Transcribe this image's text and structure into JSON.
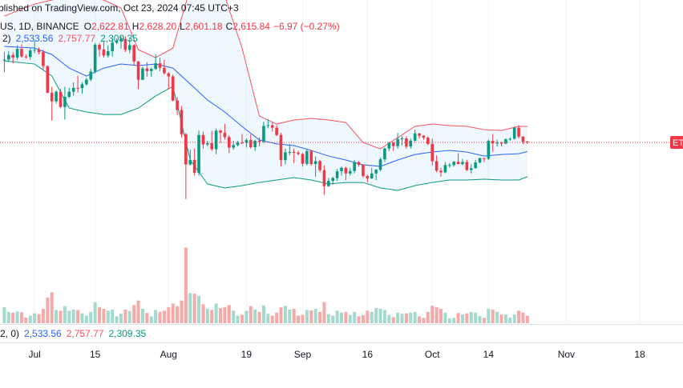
{
  "header": {
    "publisher": "blished on TradingView.com, Oct 23, 2024 07:45 UTC+3",
    "symbol": "US, 1D, BINANCE",
    "ohlc": [
      {
        "key": "O",
        "value": "2,622.81"
      },
      {
        "key": "H",
        "value": "2,628.20"
      },
      {
        "key": "L",
        "value": "2,601.18"
      },
      {
        "key": "C",
        "value": "2,615.84"
      }
    ],
    "change": "−6.97 (−0.27%)",
    "bb_legend": {
      "params": "2)",
      "values": [
        "2,533.56",
        "2,757.77",
        "2,309.35"
      ]
    },
    "lower_legend": {
      "params": "2, 0)",
      "values": [
        "2,533.56",
        "2,757.77",
        "2,309.35"
      ]
    },
    "price_tag": "ETH"
  },
  "chart_data": {
    "type": "candlestick",
    "xlim": [
      "2024-06-23",
      "2024-11-28"
    ],
    "ylim": [
      1818,
      3883
    ],
    "volume_lim": [
      0,
      2200
    ],
    "xticks": [
      {
        "value": "2024-07-01",
        "label": "Jul"
      },
      {
        "value": "2024-07-15",
        "label": "15"
      },
      {
        "value": "2024-08-01",
        "label": "Aug"
      },
      {
        "value": "2024-08-19",
        "label": "19"
      },
      {
        "value": "2024-09-01",
        "label": "Sep"
      },
      {
        "value": "2024-09-16",
        "label": "16"
      },
      {
        "value": "2024-10-01",
        "label": "Oct"
      },
      {
        "value": "2024-10-14",
        "label": "14"
      },
      {
        "value": "2024-11-01",
        "label": "Nov"
      },
      {
        "value": "2024-11-18",
        "label": "18"
      }
    ],
    "grid": true,
    "up_color": "#089981",
    "down_color": "#f23645",
    "volume_up_color": "#a3d9cf",
    "volume_down_color": "#f7a9a7",
    "x": [
      "2024-06-24",
      "2024-06-25",
      "2024-06-26",
      "2024-06-27",
      "2024-06-28",
      "2024-06-29",
      "2024-06-30",
      "2024-07-01",
      "2024-07-02",
      "2024-07-03",
      "2024-07-04",
      "2024-07-05",
      "2024-07-06",
      "2024-07-07",
      "2024-07-08",
      "2024-07-09",
      "2024-07-10",
      "2024-07-11",
      "2024-07-12",
      "2024-07-13",
      "2024-07-14",
      "2024-07-15",
      "2024-07-16",
      "2024-07-17",
      "2024-07-18",
      "2024-07-19",
      "2024-07-20",
      "2024-07-21",
      "2024-07-22",
      "2024-07-23",
      "2024-07-24",
      "2024-07-25",
      "2024-07-26",
      "2024-07-27",
      "2024-07-28",
      "2024-07-29",
      "2024-07-30",
      "2024-07-31",
      "2024-08-01",
      "2024-08-02",
      "2024-08-03",
      "2024-08-04",
      "2024-08-05",
      "2024-08-06",
      "2024-08-07",
      "2024-08-08",
      "2024-08-09",
      "2024-08-10",
      "2024-08-11",
      "2024-08-12",
      "2024-08-13",
      "2024-08-14",
      "2024-08-15",
      "2024-08-16",
      "2024-08-17",
      "2024-08-18",
      "2024-08-19",
      "2024-08-20",
      "2024-08-21",
      "2024-08-22",
      "2024-08-23",
      "2024-08-24",
      "2024-08-25",
      "2024-08-26",
      "2024-08-27",
      "2024-08-28",
      "2024-08-29",
      "2024-08-30",
      "2024-08-31",
      "2024-09-01",
      "2024-09-02",
      "2024-09-03",
      "2024-09-04",
      "2024-09-05",
      "2024-09-06",
      "2024-09-07",
      "2024-09-08",
      "2024-09-09",
      "2024-09-10",
      "2024-09-11",
      "2024-09-12",
      "2024-09-13",
      "2024-09-14",
      "2024-09-15",
      "2024-09-16",
      "2024-09-17",
      "2024-09-18",
      "2024-09-19",
      "2024-09-20",
      "2024-09-21",
      "2024-09-22",
      "2024-09-23",
      "2024-09-24",
      "2024-09-25",
      "2024-09-26",
      "2024-09-27",
      "2024-09-28",
      "2024-09-29",
      "2024-09-30",
      "2024-10-01",
      "2024-10-02",
      "2024-10-03",
      "2024-10-04",
      "2024-10-05",
      "2024-10-06",
      "2024-10-07",
      "2024-10-08",
      "2024-10-09",
      "2024-10-10",
      "2024-10-11",
      "2024-10-12",
      "2024-10-13",
      "2024-10-14",
      "2024-10-15",
      "2024-10-16",
      "2024-10-17",
      "2024-10-18",
      "2024-10-19",
      "2024-10-20",
      "2024-10-21",
      "2024-10-22",
      "2024-10-23"
    ],
    "open": [
      3347,
      3353,
      3394,
      3371,
      3448,
      3380,
      3376,
      3434,
      3439,
      3419,
      3295,
      3058,
      2981,
      3067,
      2931,
      3021,
      3067,
      3101,
      3098,
      3133,
      3175,
      3245,
      3484,
      3443,
      3388,
      3427,
      3503,
      3517,
      3536,
      3439,
      3481,
      3336,
      3173,
      3274,
      3250,
      3270,
      3320,
      3280,
      3231,
      3203,
      2988,
      2904,
      2688,
      2419,
      2460,
      2345,
      2681,
      2597,
      2609,
      2555,
      2720,
      2702,
      2663,
      2569,
      2591,
      2614,
      2612,
      2636,
      2573,
      2630,
      2622,
      2762,
      2768,
      2746,
      2681,
      2458,
      2527,
      2530,
      2525,
      2513,
      2425,
      2538,
      2423,
      2449,
      2368,
      2226,
      2273,
      2298,
      2359,
      2390,
      2339,
      2361,
      2440,
      2417,
      2316,
      2296,
      2339,
      2372,
      2465,
      2561,
      2612,
      2582,
      2645,
      2651,
      2579,
      2631,
      2695,
      2675,
      2657,
      2602,
      2448,
      2363,
      2349,
      2414,
      2414,
      2443,
      2423,
      2441,
      2370,
      2386,
      2437,
      2475,
      2470,
      2629,
      2607,
      2613,
      2605,
      2644,
      2648,
      2746,
      2667,
      2622.81
    ],
    "high": [
      3420,
      3430,
      3420,
      3480,
      3490,
      3400,
      3460,
      3520,
      3460,
      3440,
      3300,
      3110,
      3080,
      3090,
      3110,
      3100,
      3150,
      3210,
      3150,
      3190,
      3270,
      3500,
      3500,
      3520,
      3480,
      3540,
      3540,
      3560,
      3560,
      3540,
      3490,
      3340,
      3290,
      3330,
      3280,
      3400,
      3370,
      3350,
      3240,
      3220,
      3020,
      2940,
      2700,
      2550,
      2560,
      2720,
      2710,
      2630,
      2720,
      2740,
      2730,
      2780,
      2680,
      2630,
      2630,
      2690,
      2650,
      2690,
      2640,
      2660,
      2800,
      2820,
      2790,
      2770,
      2700,
      2560,
      2600,
      2560,
      2540,
      2520,
      2560,
      2550,
      2490,
      2460,
      2410,
      2300,
      2310,
      2380,
      2400,
      2400,
      2390,
      2460,
      2450,
      2420,
      2330,
      2390,
      2380,
      2480,
      2570,
      2620,
      2620,
      2700,
      2670,
      2670,
      2650,
      2730,
      2700,
      2680,
      2670,
      2650,
      2500,
      2390,
      2440,
      2430,
      2450,
      2520,
      2470,
      2460,
      2420,
      2460,
      2480,
      2480,
      2640,
      2690,
      2640,
      2620,
      2650,
      2660,
      2760,
      2770,
      2670,
      2628.2
    ],
    "low": [
      3240,
      3330,
      3320,
      3350,
      3370,
      3360,
      3350,
      3410,
      3400,
      3260,
      3050,
      2810,
      2960,
      2920,
      2820,
      3010,
      3030,
      3060,
      3050,
      3120,
      3160,
      3230,
      3380,
      3370,
      3370,
      3380,
      3490,
      3450,
      3420,
      3410,
      3300,
      3090,
      3170,
      3200,
      3200,
      3260,
      3250,
      3220,
      3090,
      2980,
      2860,
      2660,
      2111,
      2410,
      2320,
      2320,
      2560,
      2580,
      2540,
      2510,
      2610,
      2640,
      2520,
      2550,
      2580,
      2600,
      2570,
      2560,
      2540,
      2580,
      2610,
      2740,
      2710,
      2670,
      2400,
      2420,
      2500,
      2430,
      2500,
      2400,
      2410,
      2410,
      2310,
      2350,
      2150,
      2220,
      2240,
      2270,
      2320,
      2280,
      2320,
      2340,
      2400,
      2300,
      2260,
      2290,
      2280,
      2360,
      2440,
      2540,
      2540,
      2560,
      2590,
      2560,
      2560,
      2620,
      2650,
      2640,
      2590,
      2410,
      2350,
      2310,
      2340,
      2390,
      2400,
      2420,
      2410,
      2360,
      2340,
      2380,
      2430,
      2440,
      2460,
      2530,
      2580,
      2580,
      2600,
      2630,
      2640,
      2650,
      2600,
      2601.18
    ],
    "close": [
      3353,
      3394,
      3371,
      3448,
      3380,
      3376,
      3434,
      3439,
      3419,
      3295,
      3058,
      2981,
      3067,
      2931,
      3021,
      3067,
      3101,
      3098,
      3133,
      3175,
      3245,
      3484,
      3443,
      3388,
      3427,
      3503,
      3517,
      3536,
      3439,
      3481,
      3336,
      3173,
      3274,
      3250,
      3270,
      3320,
      3280,
      3231,
      3203,
      2988,
      2904,
      2688,
      2419,
      2460,
      2345,
      2681,
      2597,
      2609,
      2555,
      2720,
      2702,
      2663,
      2569,
      2591,
      2614,
      2612,
      2636,
      2573,
      2630,
      2622,
      2762,
      2768,
      2746,
      2681,
      2458,
      2527,
      2530,
      2525,
      2513,
      2425,
      2538,
      2423,
      2449,
      2368,
      2226,
      2273,
      2298,
      2359,
      2390,
      2339,
      2361,
      2440,
      2417,
      2316,
      2296,
      2339,
      2372,
      2465,
      2561,
      2612,
      2582,
      2645,
      2651,
      2579,
      2631,
      2695,
      2675,
      2657,
      2602,
      2448,
      2363,
      2349,
      2414,
      2414,
      2443,
      2423,
      2441,
      2370,
      2386,
      2437,
      2475,
      2470,
      2629,
      2607,
      2613,
      2605,
      2644,
      2648,
      2746,
      2667,
      2622,
      2615.84
    ],
    "volume": [
      420,
      300,
      280,
      310,
      290,
      150,
      200,
      260,
      240,
      380,
      680,
      820,
      350,
      330,
      450,
      330,
      360,
      350,
      260,
      200,
      300,
      560,
      420,
      380,
      330,
      360,
      180,
      250,
      360,
      320,
      480,
      600,
      380,
      270,
      180,
      350,
      300,
      330,
      420,
      520,
      450,
      600,
      2000,
      800,
      780,
      720,
      500,
      380,
      350,
      520,
      400,
      420,
      480,
      330,
      200,
      220,
      330,
      450,
      360,
      300,
      470,
      250,
      200,
      280,
      420,
      460,
      360,
      380,
      200,
      220,
      350,
      340,
      380,
      300,
      560,
      240,
      200,
      330,
      280,
      300,
      220,
      300,
      180,
      210,
      330,
      300,
      400,
      380,
      350,
      220,
      160,
      280,
      250,
      260,
      280,
      300,
      180,
      140,
      300,
      460,
      420,
      380,
      280,
      130,
      140,
      270,
      230,
      260,
      300,
      280,
      190,
      140,
      380,
      360,
      300,
      230,
      230,
      150,
      230,
      330,
      280,
      200
    ],
    "bands": {
      "x": [
        "2024-06-24",
        "2024-07-01",
        "2024-07-05",
        "2024-07-09",
        "2024-07-13",
        "2024-07-17",
        "2024-07-21",
        "2024-07-25",
        "2024-07-29",
        "2024-08-02",
        "2024-08-06",
        "2024-08-10",
        "2024-08-14",
        "2024-08-18",
        "2024-08-22",
        "2024-08-26",
        "2024-08-30",
        "2024-09-03",
        "2024-09-07",
        "2024-09-11",
        "2024-09-15",
        "2024-09-19",
        "2024-09-23",
        "2024-09-27",
        "2024-10-01",
        "2024-10-05",
        "2024-10-09",
        "2024-10-13",
        "2024-10-17",
        "2024-10-21",
        "2024-10-23"
      ],
      "upper": [
        3740,
        3847,
        3883,
        3918,
        3918,
        3883,
        3811,
        3441,
        3370,
        3455,
        3989,
        4025,
        3918,
        3455,
        2850,
        2779,
        2815,
        2829,
        2815,
        2793,
        2615,
        2558,
        2658,
        2758,
        2779,
        2765,
        2758,
        2729,
        2722,
        2758,
        2757.77
      ],
      "basis": [
        3470,
        3455,
        3398,
        3277,
        3206,
        3277,
        3313,
        3299,
        3313,
        3277,
        3135,
        2993,
        2886,
        2758,
        2637,
        2602,
        2587,
        2544,
        2494,
        2459,
        2416,
        2402,
        2459,
        2508,
        2530,
        2544,
        2530,
        2494,
        2508,
        2515,
        2533.56
      ],
      "lower": [
        3341,
        3313,
        3206,
        2921,
        2886,
        2864,
        2864,
        2921,
        3028,
        3114,
        2459,
        2245,
        2210,
        2231,
        2259,
        2281,
        2302,
        2281,
        2245,
        2259,
        2259,
        2210,
        2188,
        2231,
        2259,
        2281,
        2281,
        2288,
        2281,
        2281,
        2309.35
      ],
      "upper_color": "#f7525f",
      "basis_color": "#2962ff",
      "lower_color": "#089981",
      "fill_color": "rgba(33,150,243,0.07)"
    }
  }
}
